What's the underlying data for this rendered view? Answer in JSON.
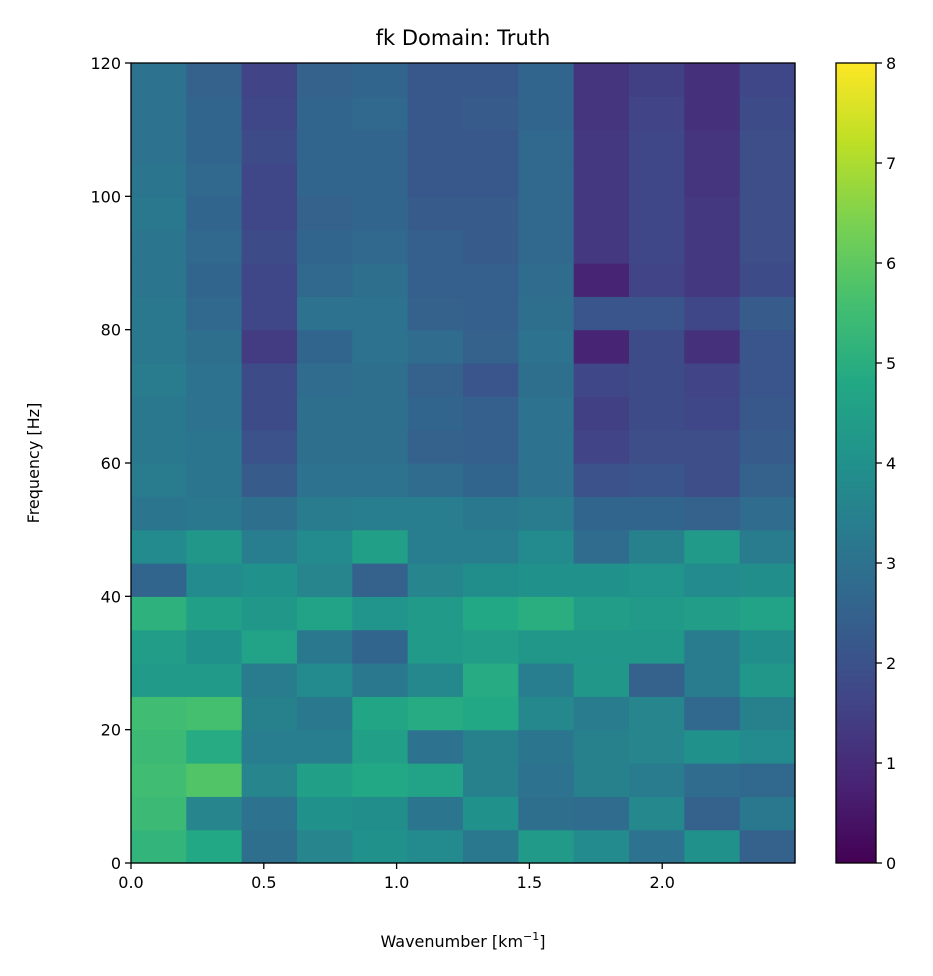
{
  "chart_data": {
    "type": "heatmap",
    "title": "fk Domain: Truth",
    "xlabel": "Wavenumber [km",
    "xlabel_superscript": "−1",
    "xlabel_suffix": "]",
    "ylabel": "Frequency [Hz]",
    "x_edges": [
      0.0,
      0.2083,
      0.4167,
      0.625,
      0.8333,
      1.0417,
      1.25,
      1.4583,
      1.6667,
      1.875,
      2.0833,
      2.2917,
      2.5
    ],
    "y_edges": [
      0,
      5,
      10,
      15,
      20,
      25,
      30,
      35,
      40,
      45,
      50,
      55,
      60,
      65,
      70,
      75,
      80,
      85,
      90,
      95,
      100,
      105,
      110,
      115,
      120
    ],
    "xlim": [
      0.0,
      2.5
    ],
    "ylim": [
      0,
      120
    ],
    "x_ticks": [
      "0.0",
      "0.5",
      "1.0",
      "1.5",
      "2.0"
    ],
    "x_tick_values": [
      0.0,
      0.5,
      1.0,
      1.5,
      2.0
    ],
    "y_ticks": [
      "0",
      "20",
      "40",
      "60",
      "80",
      "100",
      "120"
    ],
    "y_tick_values": [
      0,
      20,
      40,
      60,
      80,
      100,
      120
    ],
    "colormap": "viridis",
    "colorbar": {
      "range": [
        0,
        8
      ],
      "ticks": [
        "0",
        "1",
        "2",
        "3",
        "4",
        "5",
        "6",
        "7",
        "8"
      ],
      "tick_values": [
        0,
        1,
        2,
        3,
        4,
        5,
        6,
        7,
        8
      ]
    },
    "grid": false,
    "values_rows_bottom_to_top": [
      [
        5.2,
        4.8,
        2.9,
        3.6,
        4.0,
        3.8,
        3.2,
        4.3,
        3.8,
        3.0,
        4.0,
        2.5
      ],
      [
        5.4,
        3.6,
        3.0,
        4.0,
        3.9,
        3.1,
        4.0,
        2.9,
        2.8,
        3.7,
        2.5,
        3.2
      ],
      [
        5.5,
        5.8,
        3.6,
        4.5,
        4.8,
        4.6,
        3.5,
        3.0,
        3.5,
        3.3,
        2.8,
        2.7
      ],
      [
        5.4,
        4.9,
        3.4,
        3.4,
        4.5,
        3.0,
        3.5,
        3.1,
        3.5,
        3.6,
        4.0,
        3.8
      ],
      [
        5.5,
        5.6,
        3.5,
        3.2,
        4.7,
        4.9,
        4.8,
        3.7,
        3.3,
        3.6,
        2.7,
        3.5
      ],
      [
        4.3,
        4.3,
        3.3,
        3.8,
        3.2,
        3.7,
        4.9,
        3.4,
        4.2,
        2.5,
        3.3,
        4.2
      ],
      [
        4.4,
        4.0,
        4.6,
        3.2,
        2.6,
        4.3,
        4.4,
        4.2,
        4.2,
        4.2,
        3.3,
        3.9
      ],
      [
        5.1,
        4.5,
        4.2,
        4.6,
        4.1,
        4.3,
        4.8,
        5.0,
        4.4,
        4.3,
        4.4,
        4.6
      ],
      [
        2.6,
        3.8,
        4.0,
        3.6,
        2.5,
        3.6,
        3.9,
        4.0,
        4.0,
        4.1,
        3.8,
        3.9
      ],
      [
        3.8,
        4.2,
        3.4,
        3.8,
        4.5,
        3.4,
        3.4,
        3.8,
        2.8,
        3.5,
        4.3,
        3.3
      ],
      [
        3.1,
        3.2,
        2.9,
        3.3,
        3.4,
        3.4,
        3.2,
        3.3,
        2.6,
        2.6,
        2.5,
        2.8
      ],
      [
        3.3,
        3.1,
        2.3,
        3.0,
        3.0,
        2.8,
        2.6,
        3.0,
        2.0,
        2.1,
        1.9,
        2.5
      ],
      [
        3.2,
        3.1,
        2.0,
        2.9,
        2.9,
        2.5,
        2.4,
        3.0,
        1.6,
        1.9,
        1.9,
        2.3
      ],
      [
        3.2,
        3.0,
        1.8,
        2.9,
        2.9,
        2.6,
        2.4,
        3.0,
        1.5,
        1.8,
        1.7,
        2.2
      ],
      [
        3.3,
        3.0,
        1.8,
        2.8,
        2.9,
        2.5,
        2.1,
        2.9,
        1.7,
        1.8,
        1.6,
        2.1
      ],
      [
        3.2,
        2.9,
        1.4,
        2.6,
        3.0,
        2.8,
        2.5,
        3.0,
        0.8,
        1.8,
        1.1,
        2.1
      ],
      [
        3.2,
        2.7,
        1.7,
        3.0,
        3.0,
        2.5,
        2.4,
        2.9,
        2.1,
        2.1,
        1.7,
        2.3
      ],
      [
        3.1,
        2.6,
        1.7,
        2.7,
        2.9,
        2.4,
        2.4,
        2.8,
        0.8,
        1.6,
        1.3,
        1.8
      ],
      [
        3.1,
        2.7,
        1.8,
        2.6,
        2.7,
        2.4,
        2.3,
        2.7,
        1.3,
        1.7,
        1.3,
        1.9
      ],
      [
        3.2,
        2.6,
        1.7,
        2.5,
        2.6,
        2.3,
        2.3,
        2.7,
        1.3,
        1.7,
        1.3,
        1.9
      ],
      [
        3.1,
        2.7,
        1.7,
        2.6,
        2.6,
        2.2,
        2.2,
        2.7,
        1.3,
        1.7,
        1.2,
        1.9
      ],
      [
        3.0,
        2.6,
        1.8,
        2.6,
        2.6,
        2.2,
        2.2,
        2.7,
        1.3,
        1.7,
        1.2,
        1.9
      ],
      [
        3.0,
        2.6,
        1.7,
        2.6,
        2.7,
        2.2,
        2.3,
        2.6,
        1.2,
        1.6,
        1.1,
        1.8
      ],
      [
        3.0,
        2.5,
        1.6,
        2.5,
        2.6,
        2.2,
        2.2,
        2.6,
        1.2,
        1.5,
        1.1,
        1.7
      ]
    ]
  }
}
